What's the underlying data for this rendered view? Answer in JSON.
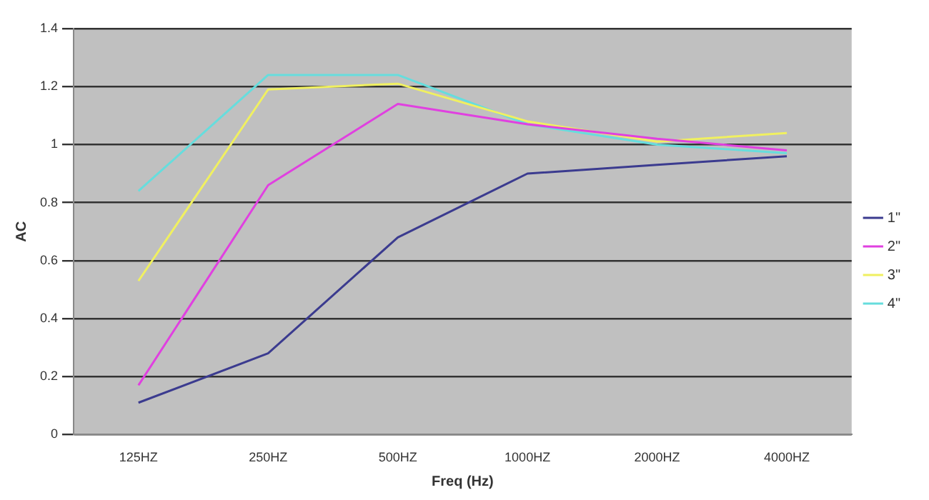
{
  "chart_data": {
    "type": "line",
    "xlabel": "Freq (Hz)",
    "ylabel": "AC",
    "categories": [
      "125HZ",
      "250HZ",
      "500HZ",
      "1000HZ",
      "2000HZ",
      "4000HZ"
    ],
    "series": [
      {
        "name": "1\"",
        "color": "#3b3b8f",
        "values": [
          0.11,
          0.28,
          0.68,
          0.9,
          0.93,
          0.96
        ]
      },
      {
        "name": "2\"",
        "color": "#e040e0",
        "values": [
          0.17,
          0.86,
          1.14,
          1.07,
          1.02,
          0.98
        ]
      },
      {
        "name": "3\"",
        "color": "#f0f060",
        "values": [
          0.53,
          1.19,
          1.21,
          1.08,
          1.01,
          1.04
        ]
      },
      {
        "name": "4\"",
        "color": "#66dddd",
        "values": [
          0.84,
          1.24,
          1.24,
          1.07,
          1.0,
          0.97
        ]
      }
    ],
    "ylim": [
      0,
      1.4
    ],
    "yticks": [
      0,
      0.2,
      0.4,
      0.6,
      0.8,
      1,
      1.2,
      1.4
    ],
    "grid": "y",
    "legend": "right",
    "marker": "none",
    "line_style": "solid"
  }
}
